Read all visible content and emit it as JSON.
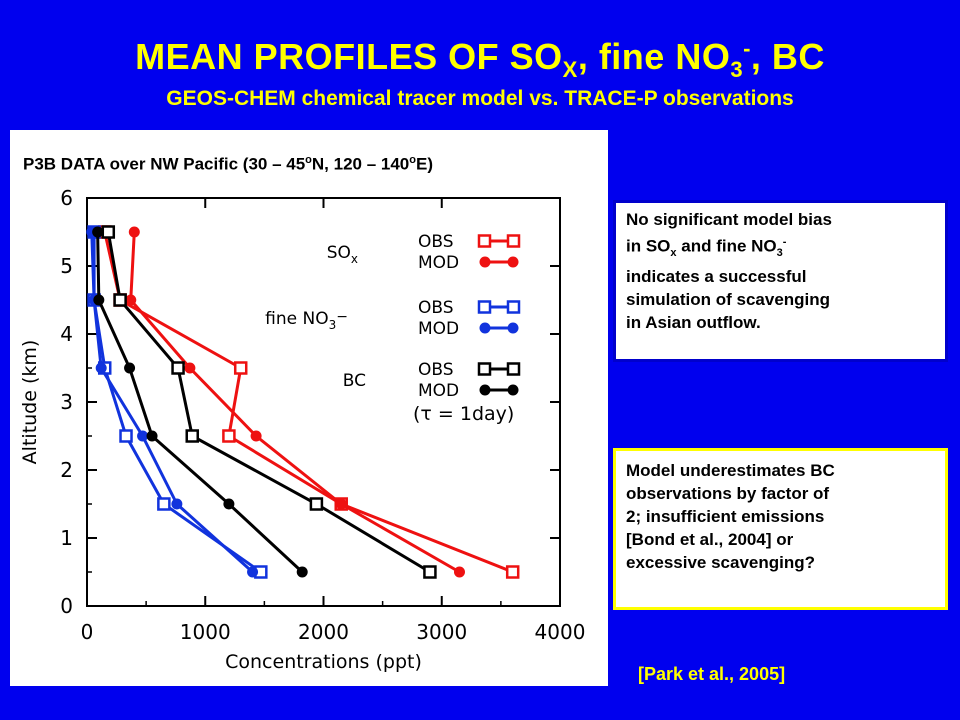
{
  "header": {
    "title_main": "MEAN PROFILES OF SO",
    "title_sub1": "X",
    "title_mid": ", fine NO",
    "title_sub2": "3",
    "title_sup2": "-",
    "title_end": ", BC",
    "subtitle": "GEOS-CHEM chemical tracer model vs. TRACE-P observations"
  },
  "panel": {
    "title_a": "P3B DATA over NW Pacific (30 – 45",
    "sup_a": "o",
    "title_b": "N, 120 – 140",
    "sup_b": "o",
    "title_c": "E)"
  },
  "box1": {
    "l1": "No significant model bias",
    "l2a": "in SO",
    "l2sub": "x",
    "l2b": " and fine NO",
    "l2sub2": "3",
    "l2sup": "-",
    "l3": "indicates a successful",
    "l4": "simulation of scavenging",
    "l5": "in Asian outflow."
  },
  "box2": {
    "l1": "Model underestimates BC",
    "l2": "observations by factor of",
    "l3": "2; insufficient emissions",
    "l4": "[Bond et al., 2004] or",
    "l5": "excessive scavenging?"
  },
  "citation": "[Park et al., 2005]",
  "chart_data": {
    "type": "line",
    "xlabel": "Concentrations (ppt)",
    "ylabel": "Altitude (km)",
    "xlim": [
      0,
      4000
    ],
    "ylim": [
      0,
      6
    ],
    "xticks": [
      "0",
      "1000",
      "2000",
      "3000",
      "4000"
    ],
    "yticks": [
      "0",
      "1",
      "2",
      "3",
      "4",
      "5",
      "6"
    ],
    "legend_placement": "top-right",
    "legend_groups": [
      {
        "label": "SO",
        "sub": "x",
        "obs": "OBS",
        "mod": "MOD",
        "color": "#ee1111"
      },
      {
        "label": "fine NO",
        "sub": "3",
        "sup": "−",
        "obs": "OBS",
        "mod": "MOD",
        "color": "#1133dd"
      },
      {
        "label": "BC",
        "obs": "OBS",
        "mod": "MOD",
        "color": "#000000",
        "note": "(τ = 1day)"
      }
    ],
    "series": [
      {
        "name": "SOx OBS",
        "color": "#ee1111",
        "marker": "square",
        "x": [
          3600,
          2150,
          1200,
          1300,
          280,
          150
        ],
        "y": [
          0.5,
          1.5,
          2.5,
          3.5,
          4.5,
          5.5
        ]
      },
      {
        "name": "SOx MOD",
        "color": "#ee1111",
        "marker": "circle",
        "x": [
          3150,
          2150,
          1430,
          870,
          370,
          400
        ],
        "y": [
          0.5,
          1.5,
          2.5,
          3.5,
          4.5,
          5.5
        ]
      },
      {
        "name": "fine NO3- OBS",
        "color": "#1133dd",
        "marker": "square",
        "x": [
          1470,
          650,
          330,
          150,
          60,
          60
        ],
        "y": [
          0.5,
          1.5,
          2.5,
          3.5,
          4.5,
          5.5
        ]
      },
      {
        "name": "fine NO3- MOD",
        "color": "#1133dd",
        "marker": "circle",
        "x": [
          1400,
          760,
          470,
          120,
          60,
          40
        ],
        "y": [
          0.5,
          1.5,
          2.5,
          3.5,
          4.5,
          5.5
        ]
      },
      {
        "name": "BC OBS",
        "color": "#000000",
        "marker": "square",
        "x": [
          2900,
          1940,
          890,
          770,
          280,
          180
        ],
        "y": [
          0.5,
          1.5,
          2.5,
          3.5,
          4.5,
          5.5
        ]
      },
      {
        "name": "BC MOD",
        "color": "#000000",
        "marker": "circle",
        "x": [
          1820,
          1200,
          550,
          360,
          100,
          90
        ],
        "y": [
          0.5,
          1.5,
          2.5,
          3.5,
          4.5,
          5.5
        ]
      }
    ]
  }
}
